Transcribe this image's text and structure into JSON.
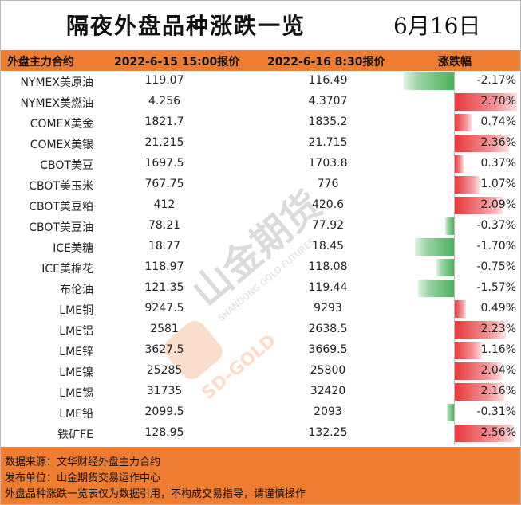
{
  "title": "隔夜外盘品种涨跌一览",
  "date": "6月16日",
  "headers": {
    "contract": "外盘主力合约",
    "price1": "2022-6-15 15:00报价",
    "price2": "2022-6-16 8:30报价",
    "change": "涨跌幅"
  },
  "rows": [
    {
      "name": "NYMEX美原油",
      "p1": "119.07",
      "p2": "116.49",
      "pct": "-2.17%",
      "value": -2.17
    },
    {
      "name": "NYMEX美燃油",
      "p1": "4.256",
      "p2": "4.3707",
      "pct": "2.70%",
      "value": 2.7
    },
    {
      "name": "COMEX美金",
      "p1": "1821.7",
      "p2": "1835.2",
      "pct": "0.74%",
      "value": 0.74
    },
    {
      "name": "COMEX美银",
      "p1": "21.215",
      "p2": "21.715",
      "pct": "2.36%",
      "value": 2.36
    },
    {
      "name": "CBOT美豆",
      "p1": "1697.5",
      "p2": "1703.8",
      "pct": "0.37%",
      "value": 0.37
    },
    {
      "name": "CBOT美玉米",
      "p1": "767.75",
      "p2": "776",
      "pct": "1.07%",
      "value": 1.07
    },
    {
      "name": "CBOT美豆粕",
      "p1": "412",
      "p2": "420.6",
      "pct": "2.09%",
      "value": 2.09
    },
    {
      "name": "CBOT美豆油",
      "p1": "78.21",
      "p2": "77.92",
      "pct": "-0.37%",
      "value": -0.37
    },
    {
      "name": "ICE美糖",
      "p1": "18.77",
      "p2": "18.45",
      "pct": "-1.70%",
      "value": -1.7
    },
    {
      "name": "ICE美棉花",
      "p1": "118.97",
      "p2": "118.08",
      "pct": "-0.75%",
      "value": -0.75
    },
    {
      "name": "布伦油",
      "p1": "121.35",
      "p2": "119.44",
      "pct": "-1.57%",
      "value": -1.57
    },
    {
      "name": "LME铜",
      "p1": "9247.5",
      "p2": "9293",
      "pct": "0.49%",
      "value": 0.49
    },
    {
      "name": "LME铝",
      "p1": "2581",
      "p2": "2638.5",
      "pct": "2.23%",
      "value": 2.23
    },
    {
      "name": "LME锌",
      "p1": "3627.5",
      "p2": "3669.5",
      "pct": "1.16%",
      "value": 1.16
    },
    {
      "name": "LME镍",
      "p1": "25285",
      "p2": "25800",
      "pct": "2.04%",
      "value": 2.04
    },
    {
      "name": "LME锡",
      "p1": "31735",
      "p2": "32420",
      "pct": "2.16%",
      "value": 2.16
    },
    {
      "name": "LME铅",
      "p1": "2099.5",
      "p2": "2093",
      "pct": "-0.31%",
      "value": -0.31
    },
    {
      "name": "铁矿FE",
      "p1": "128.95",
      "p2": "132.25",
      "pct": "2.56%",
      "value": 2.56
    }
  ],
  "footer": {
    "source": "数据来源：文华财经外盘主力合约",
    "publisher": "发布单位：山金期货交易运作中心",
    "disclaimer": "外盘品种涨跌一览表仅为数据引用，不构成交易指导，请谨慎操作"
  },
  "watermark": {
    "brand_cn": "山金期货",
    "brand_en": "SHANDONG GOLD FUTURES",
    "logo_text": "SD-GOLD"
  },
  "colors": {
    "accent": "#ef7d31",
    "up": "#e8383b",
    "down": "#4cb05c"
  }
}
